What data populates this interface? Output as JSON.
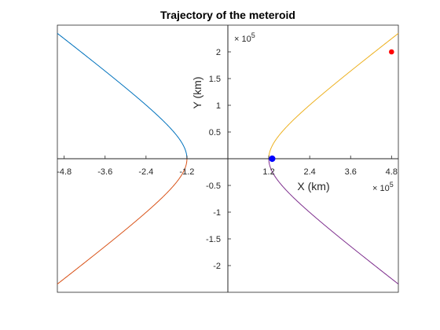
{
  "chart_data": {
    "type": "line",
    "title": "Trajectory of the meteroid",
    "xlabel": "X (km)",
    "ylabel": "Y (km)",
    "x_exponent_label": "× 10^5",
    "y_exponent_label": "× 10^5",
    "xlim": [
      -5,
      5
    ],
    "ylim": [
      -2.5,
      2.5
    ],
    "x_ticks": [
      -4.8,
      -3.6,
      -2.4,
      -1.2,
      1.2,
      2.4,
      3.6,
      4.8
    ],
    "x_tick_labels": [
      "-4.8",
      "-3.6",
      "-2.4",
      "-1.2",
      "1.2",
      "2.4",
      "3.6",
      "4.8"
    ],
    "y_ticks": [
      -2,
      -1.5,
      -1,
      -0.5,
      0.5,
      1,
      1.5,
      2
    ],
    "y_tick_labels": [
      "-2",
      "-1.5",
      "-1",
      "-0.5",
      "0.5",
      "1",
      "1.5",
      "2"
    ],
    "grid": false,
    "axes_through_origin": true,
    "hyperbola": {
      "a": 1.2,
      "b": 0.58
    },
    "series": [
      {
        "branch": "left",
        "half": "upper",
        "color": "#0072BD"
      },
      {
        "branch": "left",
        "half": "lower",
        "color": "#D95319"
      },
      {
        "branch": "right",
        "half": "upper",
        "color": "#EDB120"
      },
      {
        "branch": "right",
        "half": "lower",
        "color": "#7E2F8E"
      }
    ],
    "markers": [
      {
        "x": 1.3,
        "y": 0.0,
        "color": "#0000FF",
        "size": "large"
      },
      {
        "x": 4.8,
        "y": 2.0,
        "color": "#FF0000",
        "size": "small"
      }
    ]
  }
}
